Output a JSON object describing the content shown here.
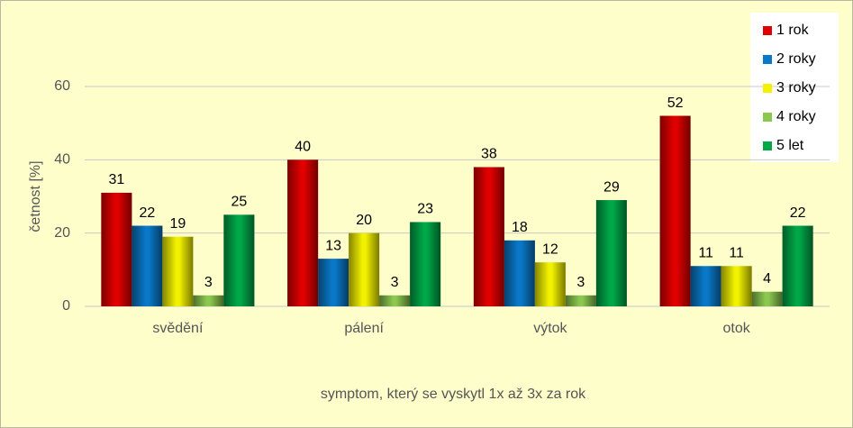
{
  "chart_data": {
    "type": "bar",
    "y_label": "četnost [%]",
    "x_label": "symptom, který se vyskytl 1x až 3x za rok",
    "categories": [
      "svědění",
      "pálení",
      "výtok",
      "otok"
    ],
    "series": [
      {
        "name": "1 rok",
        "color": "#e00000",
        "values": [
          31,
          40,
          38,
          52
        ]
      },
      {
        "name": "2 roky",
        "color": "#0a78c8",
        "values": [
          22,
          13,
          18,
          11
        ]
      },
      {
        "name": "3 roky",
        "color": "#f2f200",
        "values": [
          19,
          20,
          12,
          11
        ]
      },
      {
        "name": "4 roky",
        "color": "#8cc850",
        "values": [
          3,
          3,
          3,
          4
        ]
      },
      {
        "name": "5 let",
        "color": "#00a848",
        "values": [
          25,
          23,
          29,
          22
        ]
      }
    ],
    "ylim": [
      0,
      60
    ],
    "yticks": [
      0,
      20,
      40,
      60
    ],
    "grid": true,
    "legend": "top-right"
  }
}
